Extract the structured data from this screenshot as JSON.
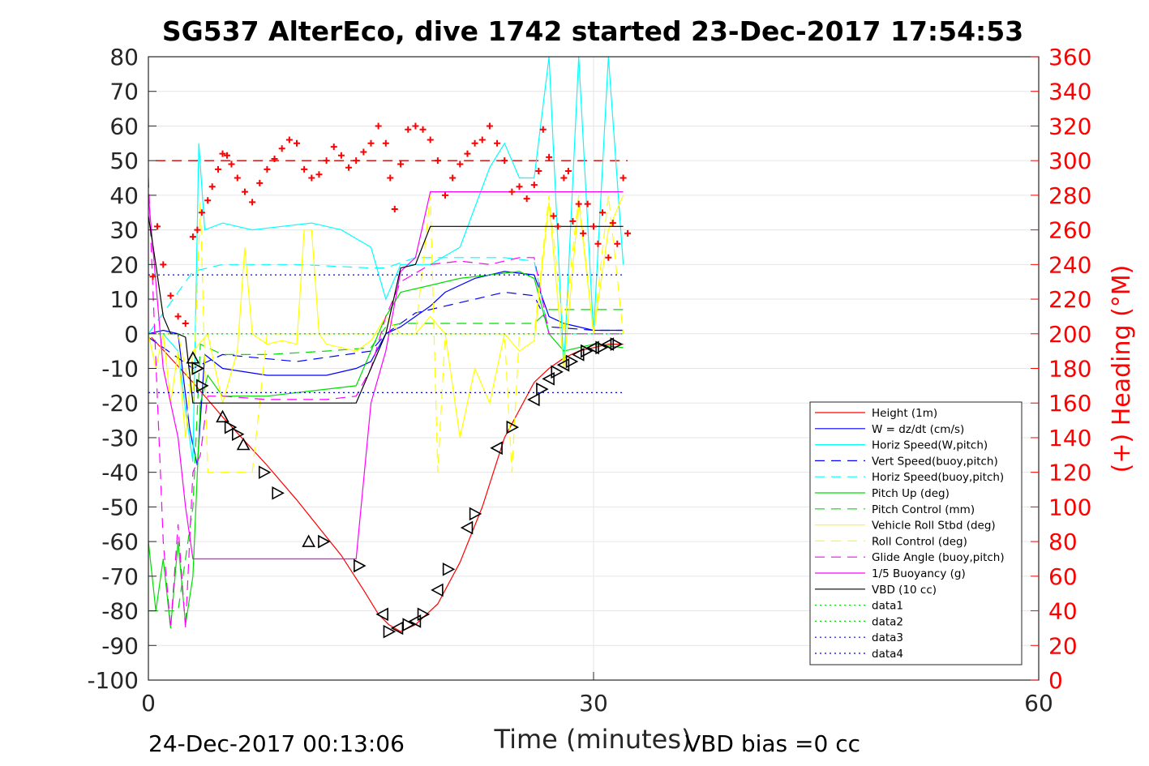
{
  "chart_data": {
    "type": "line",
    "title": "SG537 AlterEco, dive 1742 started 23-Dec-2017 17:54:53",
    "xlabel": "Time (minutes)",
    "ylabel_right": "(+) Heading (°M)",
    "xlim": [
      0,
      60
    ],
    "ylim": [
      -100,
      80
    ],
    "ylim_right": [
      0,
      360
    ],
    "x_ticks": [
      0,
      30,
      60
    ],
    "y_ticks": [
      80,
      70,
      60,
      50,
      40,
      30,
      20,
      10,
      0,
      -10,
      -20,
      -30,
      -40,
      -50,
      -60,
      -70,
      -80,
      -90,
      -100
    ],
    "y_right_ticks": [
      360,
      340,
      320,
      300,
      280,
      260,
      240,
      220,
      200,
      180,
      160,
      140,
      120,
      100,
      80,
      60,
      40,
      20,
      0
    ],
    "grid": true,
    "legend_position": "bottom-right",
    "footer_left": "24-Dec-2017 00:13:06",
    "footer_right": "VBD bias =0 cc",
    "colors": {
      "red": "#ff0000",
      "blue": "#0000ff",
      "cyan": "#00ffff",
      "green": "#00dd00",
      "yellow": "#ffff00",
      "magenta": "#ff00ff",
      "black": "#000000"
    },
    "series": [
      {
        "name": "Height (1m)",
        "color": "#ff0000",
        "style": "solid",
        "x": [
          0.2,
          3,
          5,
          8,
          10,
          13,
          14.5,
          15.5,
          16.2,
          17,
          18,
          19.5,
          21,
          22.5,
          24,
          26,
          27,
          28,
          29,
          30,
          31,
          32
        ],
        "y": [
          -1,
          -14,
          -24,
          -38,
          -48,
          -64,
          -74,
          -81,
          -84,
          -86,
          -84,
          -78,
          -66,
          -50,
          -30,
          -14,
          -10,
          -7,
          -5,
          -4,
          -3,
          -3
        ]
      },
      {
        "name": "W = dz/dt (cm/s)",
        "color": "#0000ff",
        "style": "solid",
        "x": [
          0,
          1,
          2,
          2.8,
          3.3,
          3.8,
          5,
          8,
          10,
          12,
          14,
          15,
          16,
          17,
          18,
          19,
          20,
          22,
          24,
          26,
          27,
          28,
          30,
          32
        ],
        "y": [
          0,
          1,
          0,
          -28,
          -38,
          -6,
          -10,
          -12,
          -12,
          -12,
          -10,
          -8,
          0,
          2,
          5,
          8,
          12,
          16,
          18,
          17,
          5,
          3,
          1,
          1
        ]
      },
      {
        "name": "Horiz Speed(W,pitch)",
        "color": "#00ffff",
        "style": "solid",
        "x": [
          0,
          1,
          2,
          2.5,
          3,
          3.4,
          3.8,
          5,
          7,
          9,
          11,
          13,
          15,
          16,
          17,
          19,
          21,
          23,
          24,
          25,
          26,
          27,
          28,
          29,
          30,
          31,
          32
        ],
        "y": [
          0,
          0,
          -5,
          -22,
          -37,
          55,
          30,
          32,
          30,
          31,
          32,
          30,
          25,
          10,
          20,
          20,
          25,
          48,
          55,
          45,
          45,
          80,
          -10,
          80,
          0,
          80,
          20
        ]
      },
      {
        "name": "Vert Speed(buoy,pitch)",
        "color": "#0000ff",
        "style": "dash",
        "x": [
          0,
          3,
          5,
          10,
          15,
          16,
          18,
          20,
          22,
          24,
          26,
          27,
          30,
          32
        ],
        "y": [
          -1,
          -10,
          -6,
          -8,
          -5,
          0,
          6,
          8,
          10,
          12,
          11,
          2,
          1,
          1
        ]
      },
      {
        "name": "Horiz Speed(buoy,pitch)",
        "color": "#00ffff",
        "style": "dash",
        "x": [
          0,
          3,
          5,
          10,
          15,
          16,
          18,
          20,
          22,
          24,
          26,
          27,
          30,
          32
        ],
        "y": [
          0,
          18,
          20,
          20,
          19,
          19,
          22,
          22,
          22,
          22,
          21,
          0,
          0,
          0
        ]
      },
      {
        "name": "Pitch Up (deg)",
        "color": "#00dd00",
        "style": "solid",
        "x": [
          0,
          0.5,
          1,
          1.5,
          2,
          2.5,
          3,
          3.5,
          4,
          5,
          8,
          12,
          14,
          15,
          16,
          17,
          19,
          21,
          23,
          25,
          26,
          27,
          28,
          30,
          32
        ],
        "y": [
          -60,
          -80,
          -65,
          -85,
          -60,
          -84,
          -70,
          -20,
          -12,
          -18,
          -18,
          -16,
          -15,
          -5,
          5,
          12,
          14,
          16,
          17,
          18,
          16,
          0,
          -5,
          -3,
          -4
        ]
      },
      {
        "name": "Pitch Control (mm)",
        "color": "#00dd00",
        "style": "dash",
        "x": [
          0,
          2,
          3,
          3.5,
          5,
          8,
          12,
          15,
          16,
          17,
          19,
          21,
          23,
          25,
          26,
          27,
          30,
          32
        ],
        "y": [
          -80,
          -80,
          -50,
          -3,
          -6,
          -6,
          -5,
          -4,
          2,
          3,
          3,
          3,
          3,
          3,
          3,
          7,
          7,
          7
        ]
      },
      {
        "name": "Vehicle Roll Stbd (deg)",
        "color": "#ffff00",
        "style": "solid",
        "x": [
          0,
          0.5,
          1,
          1.5,
          2,
          2.5,
          3,
          4,
          5,
          6,
          6.5,
          7,
          8,
          9,
          10,
          10.5,
          11,
          11.5,
          12,
          13,
          14,
          15,
          16,
          17,
          18,
          19,
          20,
          21,
          22,
          23,
          24,
          25,
          26,
          27,
          28,
          29,
          30,
          31,
          32
        ],
        "y": [
          0,
          -10,
          0,
          -20,
          -5,
          -30,
          -5,
          0,
          -20,
          -5,
          25,
          0,
          -3,
          -2,
          -3,
          30,
          30,
          0,
          -3,
          -4,
          -5,
          -2,
          5,
          0,
          0,
          5,
          0,
          -30,
          -10,
          -20,
          0,
          -5,
          -2,
          38,
          -10,
          38,
          0,
          30,
          40
        ]
      },
      {
        "name": "Roll Control (deg)",
        "color": "#ffff00",
        "style": "dash",
        "x": [
          0,
          2,
          3,
          3.5,
          4,
          5,
          6,
          6.5,
          7,
          8,
          10,
          12,
          14,
          15,
          16,
          17,
          18,
          19,
          19.5,
          20,
          21,
          22,
          23,
          24,
          24.5,
          25,
          26,
          27,
          28,
          29,
          30,
          31,
          32
        ],
        "y": [
          0,
          0,
          -20,
          38,
          -40,
          -40,
          -40,
          -40,
          -40,
          0,
          0,
          0,
          0,
          0,
          0,
          0,
          0,
          40,
          -40,
          0,
          0,
          0,
          0,
          0,
          -40,
          0,
          0,
          40,
          0,
          40,
          0,
          40,
          0
        ]
      },
      {
        "name": "Glide Angle (buoy,pitch)",
        "color": "#ff00ff",
        "style": "dash",
        "x": [
          0,
          1,
          1.5,
          2,
          2.5,
          3,
          3.5,
          4,
          5,
          8,
          12,
          14,
          15,
          16,
          17,
          19,
          21,
          23,
          25,
          26,
          27,
          30,
          32
        ],
        "y": [
          45,
          -60,
          -85,
          -55,
          -85,
          -40,
          -35,
          -18,
          -18,
          -19,
          -19,
          -18,
          -10,
          5,
          15,
          20,
          21,
          20,
          22,
          22,
          0,
          0,
          0
        ]
      },
      {
        "name": "1/5 Buoyancy (g)",
        "color": "#ff00ff",
        "style": "solid",
        "x": [
          0,
          1,
          2,
          2.5,
          3,
          4,
          8,
          12,
          14,
          15,
          16,
          17,
          18,
          19,
          26,
          27,
          32
        ],
        "y": [
          40,
          -10,
          -30,
          -50,
          -65,
          -65,
          -65,
          -65,
          -65,
          -20,
          -5,
          18,
          22,
          41,
          41,
          41,
          41
        ]
      },
      {
        "name": "VBD (10 cc)",
        "color": "#000000",
        "style": "solid",
        "x": [
          0,
          0.5,
          1,
          1.5,
          2,
          2.5,
          3,
          4,
          8,
          12,
          14,
          15,
          16,
          17,
          18,
          19,
          26,
          27,
          32
        ],
        "y": [
          34,
          20,
          5,
          0,
          0,
          -1,
          -20,
          -20,
          -20,
          -20,
          -20,
          -10,
          0,
          19,
          20,
          31,
          31,
          31,
          31
        ]
      },
      {
        "name": "data1",
        "color": "#00dd00",
        "style": "dot",
        "x": [
          0,
          32
        ],
        "y": [
          0,
          0
        ]
      },
      {
        "name": "data2",
        "color": "#00dd00",
        "style": "dot",
        "x": [
          0,
          32
        ],
        "y": [
          0,
          0
        ]
      },
      {
        "name": "data3",
        "color": "#0000ff",
        "style": "dot",
        "x": [
          0,
          32
        ],
        "y": [
          17,
          17
        ]
      },
      {
        "name": "data4",
        "color": "#0000ff",
        "style": "dot",
        "x": [
          0,
          32
        ],
        "y": [
          -17,
          -17
        ]
      }
    ],
    "heading_reference": 300,
    "heading_points": {
      "x": [
        0.3,
        0.6,
        1,
        1.5,
        2,
        2.5,
        3,
        3.3,
        3.6,
        4,
        4.3,
        4.7,
        5,
        5.3,
        5.6,
        6,
        6.5,
        7,
        7.5,
        8,
        8.5,
        9,
        9.5,
        10,
        10.5,
        11,
        11.5,
        12,
        12.5,
        13,
        13.5,
        14,
        14.5,
        15,
        15.5,
        16,
        16.3,
        16.6,
        17,
        17.5,
        18,
        18.5,
        19,
        19.5,
        20,
        20.5,
        21,
        21.5,
        22,
        22.5,
        23,
        23.5,
        24,
        24.5,
        25,
        25.5,
        26,
        26.3,
        26.6,
        27,
        27.3,
        27.6,
        28,
        28.3,
        28.6,
        29,
        29.3,
        29.6,
        30,
        30.3,
        30.6,
        31,
        31.3,
        31.6,
        32,
        32.3
      ],
      "y": [
        233,
        262,
        240,
        222,
        210,
        206,
        256,
        260,
        270,
        277,
        285,
        295,
        304,
        303,
        298,
        290,
        282,
        276,
        287,
        295,
        301,
        307,
        312,
        310,
        295,
        290,
        292,
        300,
        308,
        303,
        296,
        300,
        305,
        310,
        320,
        310,
        290,
        272,
        298,
        318,
        320,
        318,
        312,
        300,
        280,
        290,
        298,
        304,
        310,
        312,
        320,
        310,
        300,
        282,
        285,
        278,
        286,
        294,
        318,
        302,
        268,
        262,
        290,
        294,
        265,
        275,
        258,
        275,
        262,
        252,
        270,
        244,
        264,
        252,
        290,
        258
      ]
    },
    "profile_markers": {
      "dive": {
        "x": [
          3,
          3.3,
          3.6,
          5,
          5.5,
          6,
          6.4,
          7.8,
          8.7,
          10.8,
          11.8,
          14.2
        ],
        "y": [
          -7,
          -10,
          -15,
          -24,
          -27,
          -29,
          -32,
          -40,
          -46,
          -60,
          -60,
          -67
        ]
      },
      "climb": {
        "x": [
          15.8,
          16.2,
          16.8,
          17.5,
          18,
          18.5,
          19.5,
          20.2,
          21.5,
          22,
          23.5,
          24.5,
          26,
          26.5,
          27,
          27.5,
          28,
          28.5,
          29,
          29.5,
          30,
          30.5,
          31,
          31.5
        ],
        "y": [
          -81,
          -86,
          -85,
          -84,
          -83,
          -81,
          -74,
          -68,
          -56,
          -52,
          -33,
          -27,
          -19,
          -16,
          -13,
          -11,
          -9,
          -8,
          -6,
          -5,
          -4,
          -4,
          -3,
          -3
        ]
      }
    }
  }
}
